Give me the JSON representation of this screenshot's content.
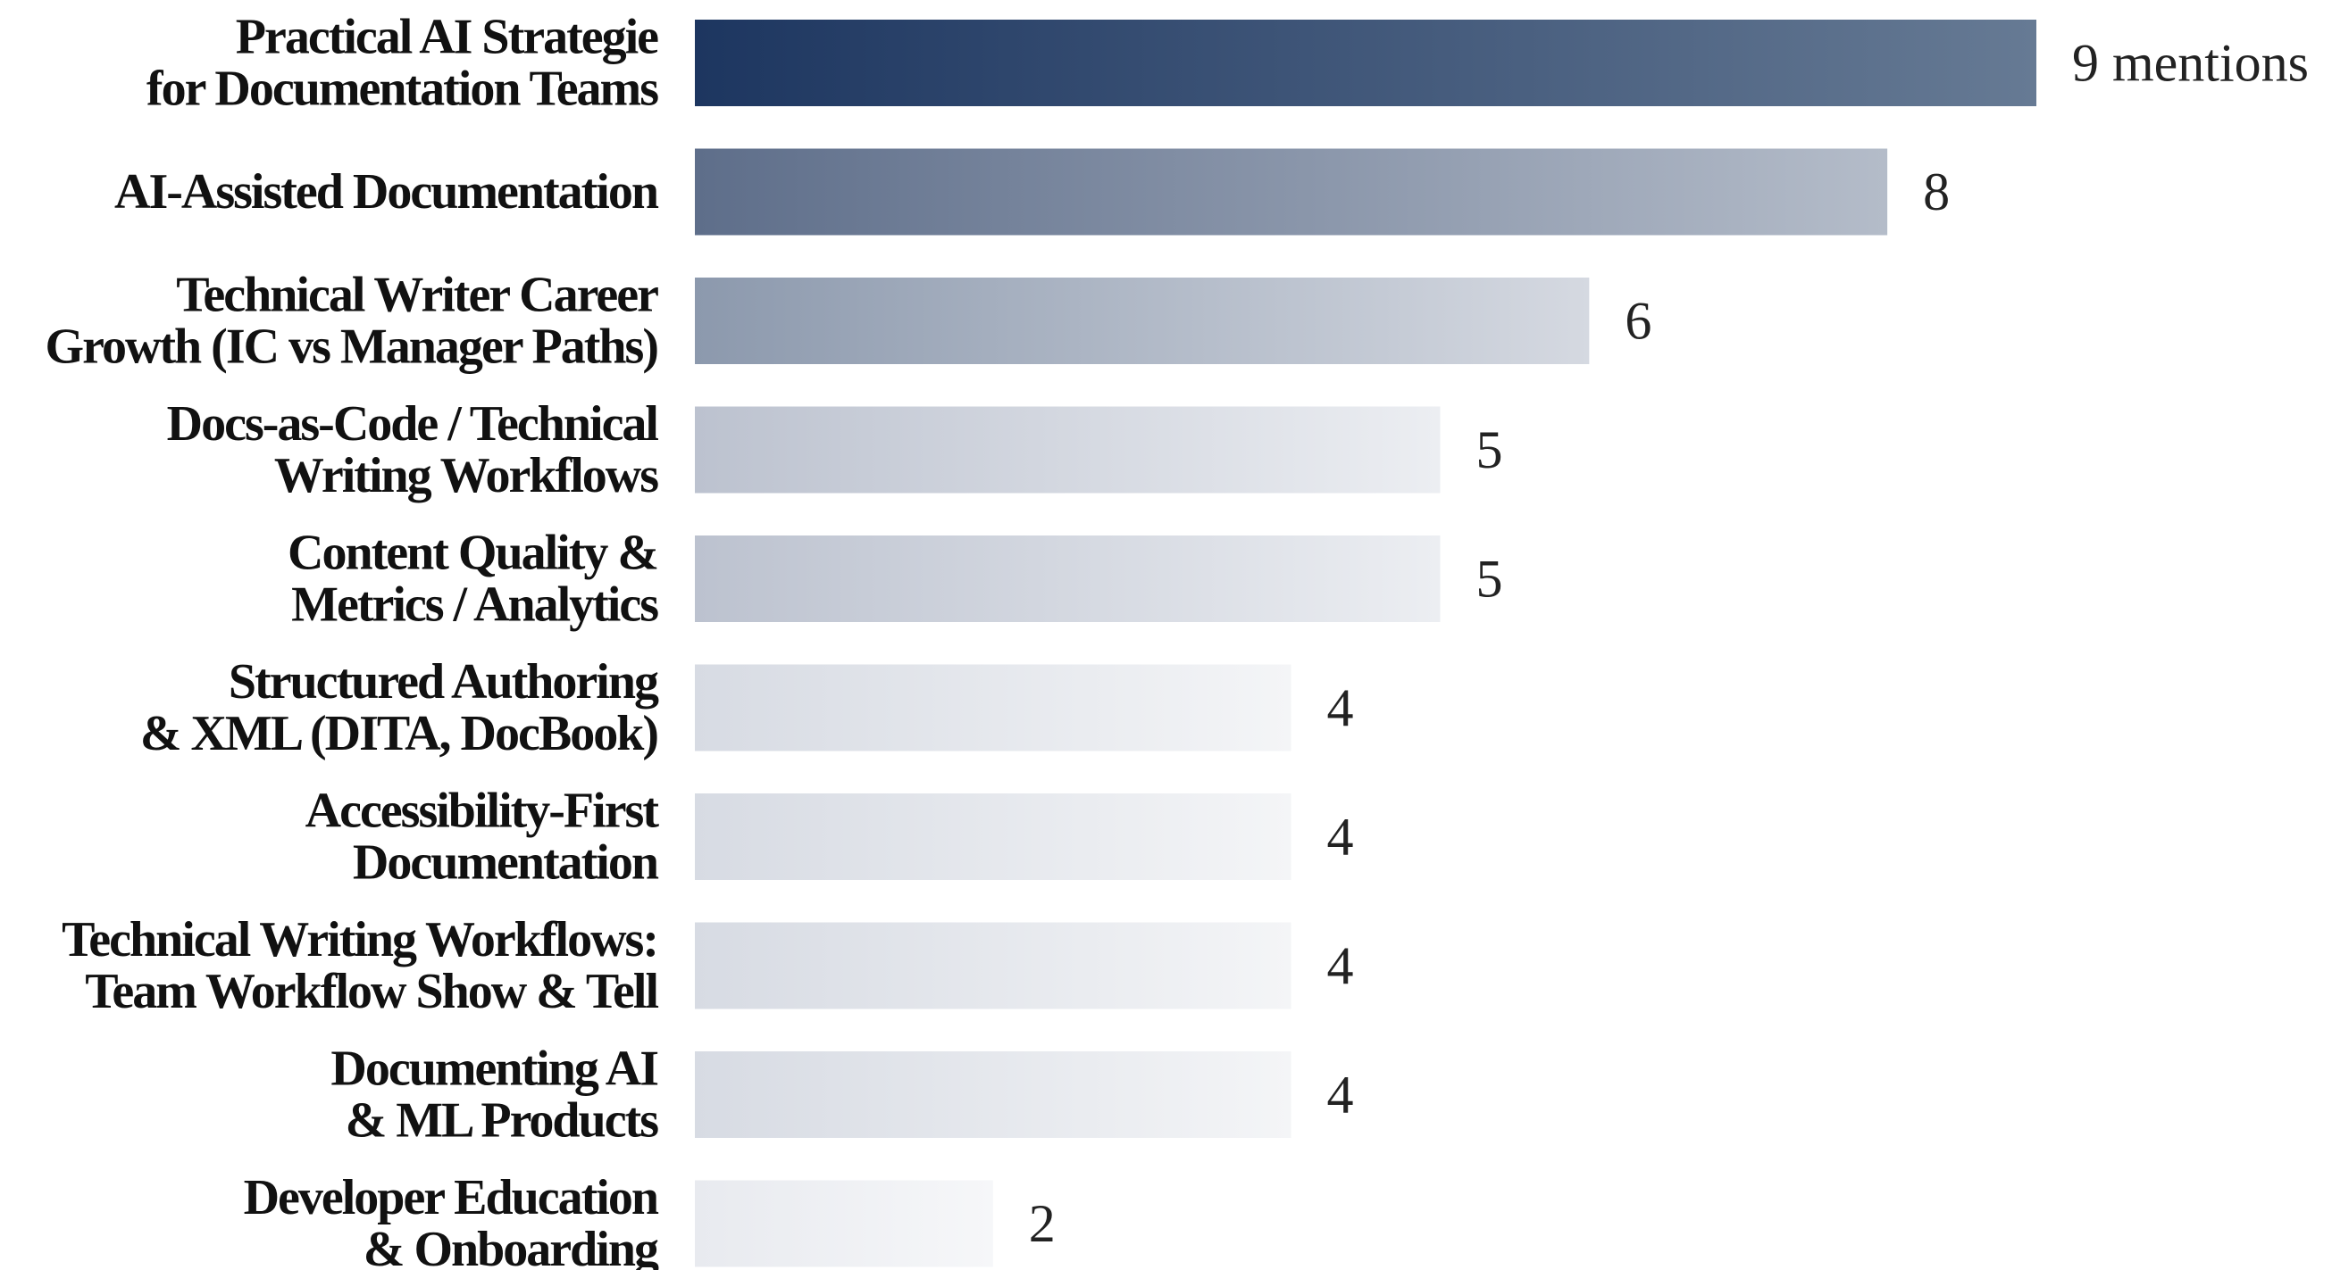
{
  "chart_data": {
    "type": "bar",
    "orientation": "horizontal",
    "categories": [
      [
        "Practical AI Strategie",
        "for Documentation Teams"
      ],
      [
        "AI-Assisted Documentation"
      ],
      [
        "Technical Writer Career",
        "Growth (IC vs Manager Paths)"
      ],
      [
        "Docs-as-Code / Technical",
        "Writing Workflows"
      ],
      [
        "Content Quality &",
        "Metrics / Analytics"
      ],
      [
        "Structured Authoring",
        "& XML (DITA, DocBook)"
      ],
      [
        "Accessibility-First",
        "Documentation"
      ],
      [
        "Technical Writing Workflows:",
        "Team Workflow Show & Tell"
      ],
      [
        "Documenting AI",
        "& ML Products"
      ],
      [
        "Developer Education",
        "& Onboarding"
      ]
    ],
    "values": [
      9,
      8,
      6,
      5,
      5,
      4,
      4,
      4,
      4,
      2
    ],
    "value_labels": [
      "9 mentions",
      "8",
      "6",
      "5",
      "5",
      "4",
      "4",
      "4",
      "4",
      "2"
    ],
    "colors": [
      [
        "#1d3660",
        "#667a94"
      ],
      [
        "#5e6e8a",
        "#b4bcc9"
      ],
      [
        "#8c99ad",
        "#d5d9e1"
      ],
      [
        "#bcc2cf",
        "#eceef2"
      ],
      [
        "#bcc2cf",
        "#eceef2"
      ],
      [
        "#d7dbe3",
        "#f4f5f7"
      ],
      [
        "#d7dbe3",
        "#f4f5f7"
      ],
      [
        "#d7dbe3",
        "#f4f5f7"
      ],
      [
        "#d7dbe3",
        "#f4f5f7"
      ],
      [
        "#e8eaef",
        "#f6f7f9"
      ]
    ]
  }
}
